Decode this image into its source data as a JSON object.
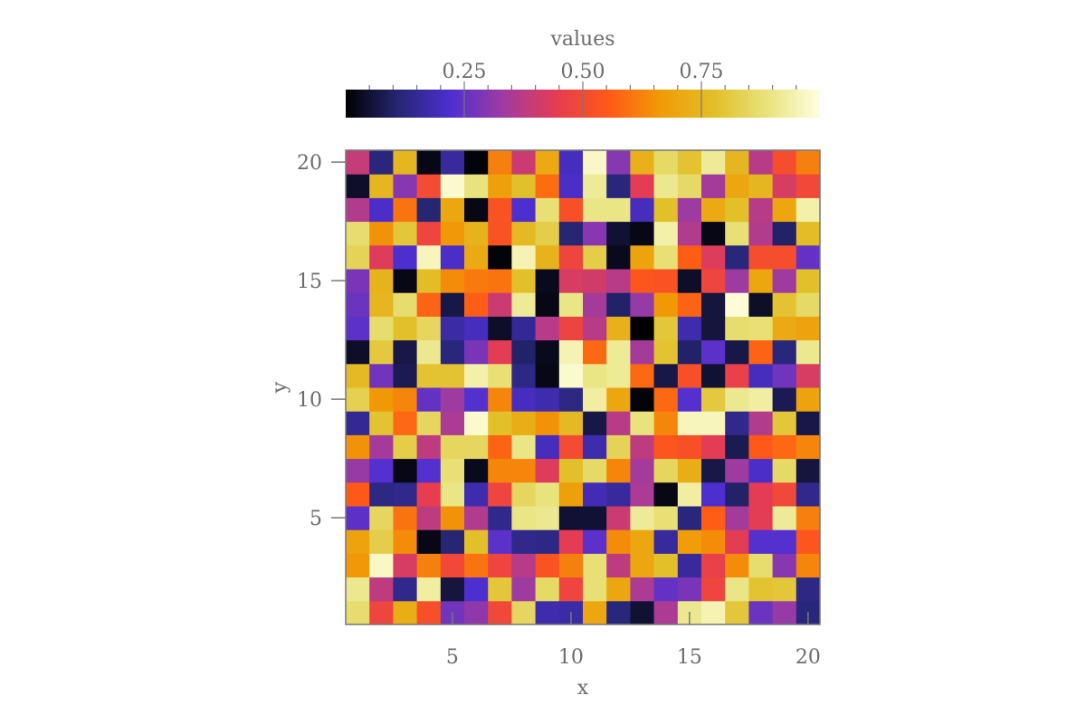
{
  "chart_data": {
    "type": "heatmap",
    "title": "",
    "xlabel": "x",
    "ylabel": "y",
    "xlim": [
      0.5,
      20.5
    ],
    "ylim": [
      0.5,
      20.5
    ],
    "x_ticks": [
      5,
      10,
      15,
      20
    ],
    "y_ticks": [
      5,
      10,
      15,
      20
    ],
    "x_tick_labels": [
      "5",
      "10",
      "15",
      "20"
    ],
    "y_tick_labels": [
      "5",
      "10",
      "15",
      "20"
    ],
    "x": [
      1,
      2,
      3,
      4,
      5,
      6,
      7,
      8,
      9,
      10,
      11,
      12,
      13,
      14,
      15,
      16,
      17,
      18,
      19,
      20
    ],
    "y": [
      1,
      2,
      3,
      4,
      5,
      6,
      7,
      8,
      9,
      10,
      11,
      12,
      13,
      14,
      15,
      16,
      17,
      18,
      19,
      20
    ],
    "colormap": "CMRmap",
    "colormap_stops": [
      "#000000",
      "#262673",
      "#4e2fd1",
      "#a03ba0",
      "#e63c51",
      "#ff5a16",
      "#f09c06",
      "#e2bf28",
      "#e8e37c",
      "#ffffe0"
    ],
    "colorbar": {
      "label": "values",
      "range": [
        0,
        1
      ],
      "ticks": [
        0.25,
        0.5,
        0.75
      ],
      "tick_labels": [
        "0.25",
        "0.50",
        "0.75"
      ],
      "minor_step": 0.05
    },
    "grid": false,
    "values": [
      [
        0.87,
        0.48,
        0.72,
        0.52,
        0.27,
        0.31,
        0.49,
        0.85,
        0.18,
        0.17,
        0.7,
        0.12,
        0.05,
        0.35,
        0.91,
        0.95,
        0.8,
        0.26,
        0.32,
        0.12
      ],
      [
        0.91,
        0.38,
        0.14,
        0.93,
        0.06,
        0.22,
        0.8,
        0.33,
        0.86,
        0.48,
        0.88,
        0.7,
        0.35,
        0.25,
        0.28,
        0.48,
        0.9,
        0.79,
        0.8,
        0.13
      ],
      [
        0.66,
        0.97,
        0.42,
        0.62,
        0.49,
        0.6,
        0.48,
        0.37,
        0.53,
        0.62,
        0.88,
        0.38,
        0.7,
        0.78,
        0.16,
        0.46,
        0.64,
        0.87,
        0.3,
        0.63
      ],
      [
        0.69,
        0.82,
        0.64,
        0.02,
        0.11,
        0.78,
        0.24,
        0.14,
        0.13,
        0.44,
        0.24,
        0.64,
        0.7,
        0.16,
        0.67,
        0.64,
        0.44,
        0.23,
        0.23,
        0.54
      ],
      [
        0.24,
        0.85,
        0.6,
        0.38,
        0.65,
        0.36,
        0.14,
        0.9,
        0.91,
        0.05,
        0.05,
        0.4,
        0.92,
        0.88,
        0.12,
        0.56,
        0.34,
        0.44,
        0.92,
        0.62
      ],
      [
        0.55,
        0.13,
        0.14,
        0.45,
        0.9,
        0.18,
        0.48,
        0.85,
        0.89,
        0.68,
        0.19,
        0.16,
        0.35,
        0.02,
        0.93,
        0.22,
        0.1,
        0.44,
        0.49,
        0.14
      ],
      [
        0.32,
        0.23,
        0.02,
        0.23,
        0.88,
        0.03,
        0.63,
        0.63,
        0.43,
        0.78,
        0.86,
        0.63,
        0.34,
        0.85,
        0.72,
        0.07,
        0.33,
        0.21,
        0.86,
        0.06
      ],
      [
        0.65,
        0.34,
        0.82,
        0.38,
        0.85,
        0.85,
        0.57,
        0.9,
        0.2,
        0.5,
        0.18,
        0.84,
        0.38,
        0.54,
        0.52,
        0.44,
        0.08,
        0.55,
        0.58,
        0.63
      ],
      [
        0.15,
        0.79,
        0.58,
        0.85,
        0.35,
        0.98,
        0.78,
        0.72,
        0.65,
        0.76,
        0.07,
        0.37,
        0.89,
        0.63,
        0.96,
        0.96,
        0.14,
        0.36,
        0.8,
        0.07
      ],
      [
        0.83,
        0.66,
        0.63,
        0.25,
        0.33,
        0.23,
        0.63,
        0.2,
        0.18,
        0.13,
        0.93,
        0.7,
        0.01,
        0.58,
        0.23,
        0.81,
        0.91,
        0.93,
        0.08,
        0.69
      ],
      [
        0.76,
        0.27,
        0.08,
        0.79,
        0.79,
        0.94,
        0.88,
        0.13,
        0.02,
        0.98,
        0.9,
        0.92,
        0.58,
        0.07,
        0.52,
        0.05,
        0.46,
        0.2,
        0.27,
        0.42
      ],
      [
        0.04,
        0.81,
        0.07,
        0.91,
        0.12,
        0.28,
        0.44,
        0.1,
        0.03,
        0.95,
        0.58,
        0.92,
        0.34,
        0.79,
        0.1,
        0.24,
        0.07,
        0.57,
        0.12,
        0.91
      ],
      [
        0.24,
        0.87,
        0.78,
        0.85,
        0.17,
        0.2,
        0.04,
        0.15,
        0.37,
        0.47,
        0.37,
        0.73,
        0.0,
        0.8,
        0.18,
        0.06,
        0.87,
        0.88,
        0.71,
        0.69
      ],
      [
        0.26,
        0.75,
        0.87,
        0.57,
        0.07,
        0.56,
        0.4,
        0.92,
        0.02,
        0.9,
        0.34,
        0.1,
        0.32,
        0.66,
        0.57,
        0.06,
        0.99,
        0.04,
        0.79,
        0.86
      ],
      [
        0.28,
        0.74,
        0.02,
        0.77,
        0.64,
        0.61,
        0.6,
        0.78,
        0.03,
        0.42,
        0.41,
        0.37,
        0.54,
        0.53,
        0.04,
        0.48,
        0.33,
        0.7,
        0.33,
        0.78
      ],
      [
        0.84,
        0.43,
        0.22,
        0.96,
        0.21,
        0.71,
        0.01,
        0.95,
        0.74,
        0.48,
        0.82,
        0.03,
        0.69,
        0.88,
        0.56,
        0.43,
        0.12,
        0.51,
        0.51,
        0.25
      ],
      [
        0.87,
        0.65,
        0.8,
        0.48,
        0.66,
        0.74,
        0.53,
        0.76,
        0.82,
        0.11,
        0.3,
        0.05,
        0.02,
        0.94,
        0.36,
        0.02,
        0.88,
        0.36,
        0.1,
        0.77
      ],
      [
        0.36,
        0.21,
        0.6,
        0.11,
        0.7,
        0.02,
        0.53,
        0.22,
        0.88,
        0.52,
        0.9,
        0.9,
        0.2,
        0.78,
        0.33,
        0.71,
        0.78,
        0.37,
        0.7,
        0.94
      ],
      [
        0.04,
        0.75,
        0.3,
        0.5,
        0.98,
        0.89,
        0.68,
        0.78,
        0.59,
        0.21,
        0.92,
        0.12,
        0.44,
        0.91,
        0.86,
        0.34,
        0.7,
        0.75,
        0.42,
        0.49
      ],
      [
        0.39,
        0.12,
        0.75,
        0.02,
        0.16,
        0.01,
        0.62,
        0.4,
        0.71,
        0.2,
        0.97,
        0.3,
        0.73,
        0.86,
        0.79,
        0.92,
        0.75,
        0.37,
        0.51,
        0.62
      ]
    ]
  }
}
